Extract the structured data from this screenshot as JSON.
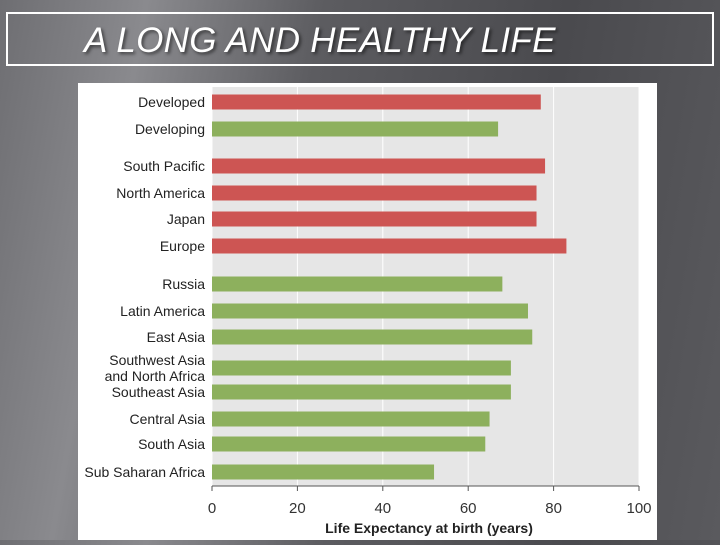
{
  "slide": {
    "title": "A LONG AND HEALTHY LIFE"
  },
  "colors": {
    "developed": "#cd5553",
    "developing": "#8db05d",
    "plot_bg": "#e6e6e6"
  },
  "chart_data": {
    "type": "bar",
    "orientation": "horizontal",
    "title": "",
    "xlabel": "Life Expectancy at birth (years)",
    "ylabel": "",
    "xlim": [
      0,
      100
    ],
    "xticks": [
      0,
      20,
      40,
      60,
      80,
      100
    ],
    "grid": true,
    "legend": "none",
    "categories": [
      "Developed",
      "Developing",
      "South Pacific",
      "North America",
      "Japan",
      "Europe",
      "Russia",
      "Latin America",
      "East Asia",
      "Southwest Asia and North Africa",
      "Southeast Asia",
      "Central Asia",
      "South Asia",
      "Sub Saharan Africa"
    ],
    "values": [
      77,
      67,
      78,
      76,
      76,
      83,
      68,
      74,
      75,
      70,
      70,
      65,
      64,
      52
    ],
    "bar_groups": [
      "developed",
      "developing",
      "developed",
      "developed",
      "developed",
      "developed",
      "developing",
      "developing",
      "developing",
      "developing",
      "developing",
      "developing",
      "developing",
      "developing"
    ],
    "label_lines": [
      [
        "Developed"
      ],
      [
        "Developing"
      ],
      [
        "South Pacific"
      ],
      [
        "North America"
      ],
      [
        "Japan"
      ],
      [
        "Europe"
      ],
      [
        "Russia"
      ],
      [
        "Latin America"
      ],
      [
        "East Asia"
      ],
      [
        "Southwest Asia",
        "and North Africa"
      ],
      [
        "Southeast Asia"
      ],
      [
        "Central Asia"
      ],
      [
        "South Asia"
      ],
      [
        "Sub Saharan Africa"
      ]
    ]
  }
}
